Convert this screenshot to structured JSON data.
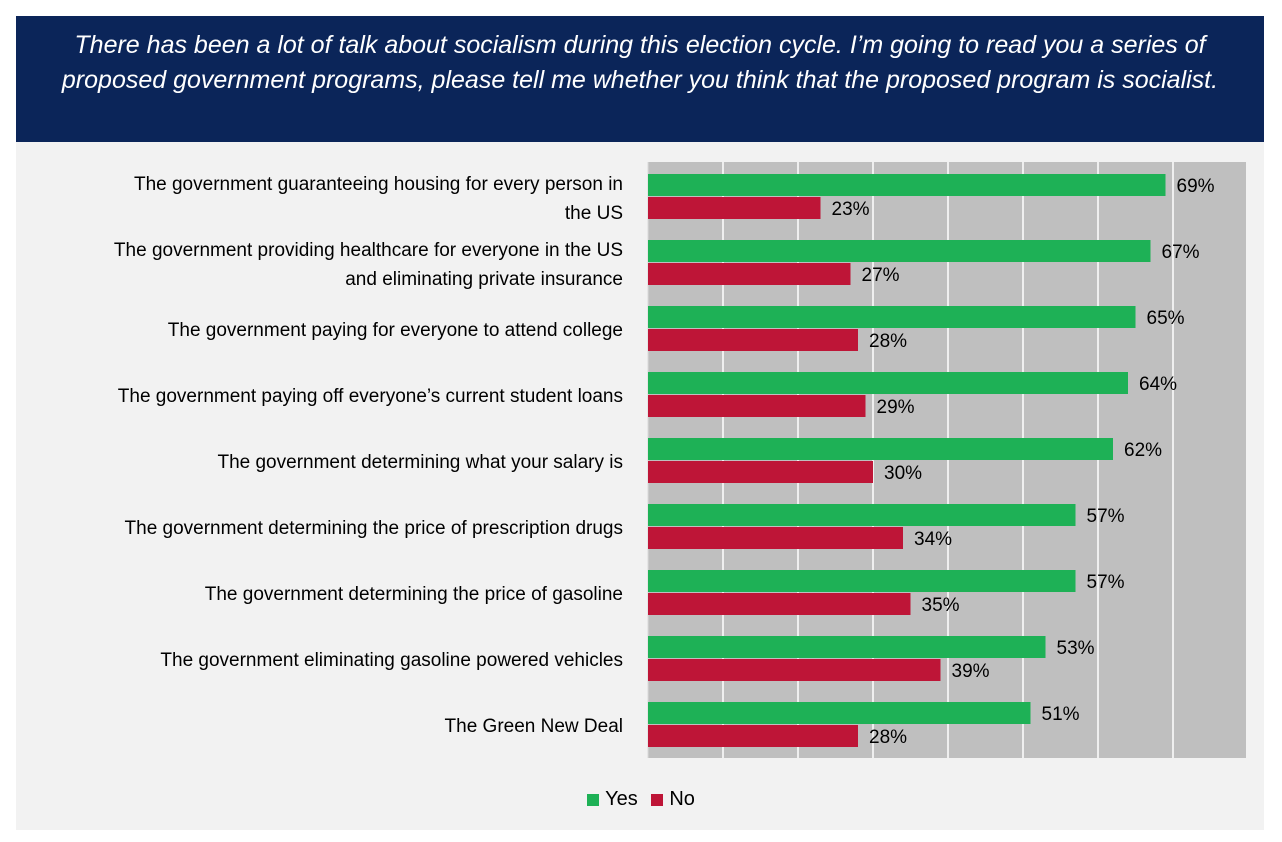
{
  "colors": {
    "header_bg": "#0b2559",
    "yes": "#1eb156",
    "no": "#be1537",
    "plot_bg": "#bfbfbf",
    "card_bg": "#f2f2f2"
  },
  "chart_data": {
    "type": "bar",
    "orientation": "horizontal",
    "title": "There has been a lot of talk about socialism during this election cycle. I’m going to read you a series of proposed government programs, please tell me whether you think that the proposed program is socialist.",
    "categories": [
      [
        "The government guaranteeing housing for every person in",
        "the US"
      ],
      [
        "The government providing healthcare for everyone in the US",
        "and eliminating private insurance"
      ],
      [
        "The government paying for everyone to attend college"
      ],
      [
        "The government paying off everyone’s current student loans"
      ],
      [
        "The government determining what your salary is"
      ],
      [
        "The government determining the price of prescription drugs"
      ],
      [
        "The government determining the price of gasoline"
      ],
      [
        "The government eliminating gasoline powered vehicles"
      ],
      [
        "The Green New Deal"
      ]
    ],
    "series": [
      {
        "name": "Yes",
        "color": "#1eb156",
        "values": [
          69,
          67,
          65,
          64,
          62,
          57,
          57,
          53,
          51
        ],
        "labels": [
          "69%",
          "67%",
          "65%",
          "64%",
          "62%",
          "57%",
          "57%",
          "53%",
          "51%"
        ]
      },
      {
        "name": "No",
        "color": "#be1537",
        "values": [
          23,
          27,
          28,
          29,
          30,
          34,
          35,
          39,
          28
        ],
        "labels": [
          "23%",
          "27%",
          "28%",
          "29%",
          "30%",
          "34%",
          "35%",
          "39%",
          "28%"
        ]
      }
    ],
    "xlim": [
      0,
      80
    ],
    "grid": true,
    "legend": "bottom-center"
  }
}
